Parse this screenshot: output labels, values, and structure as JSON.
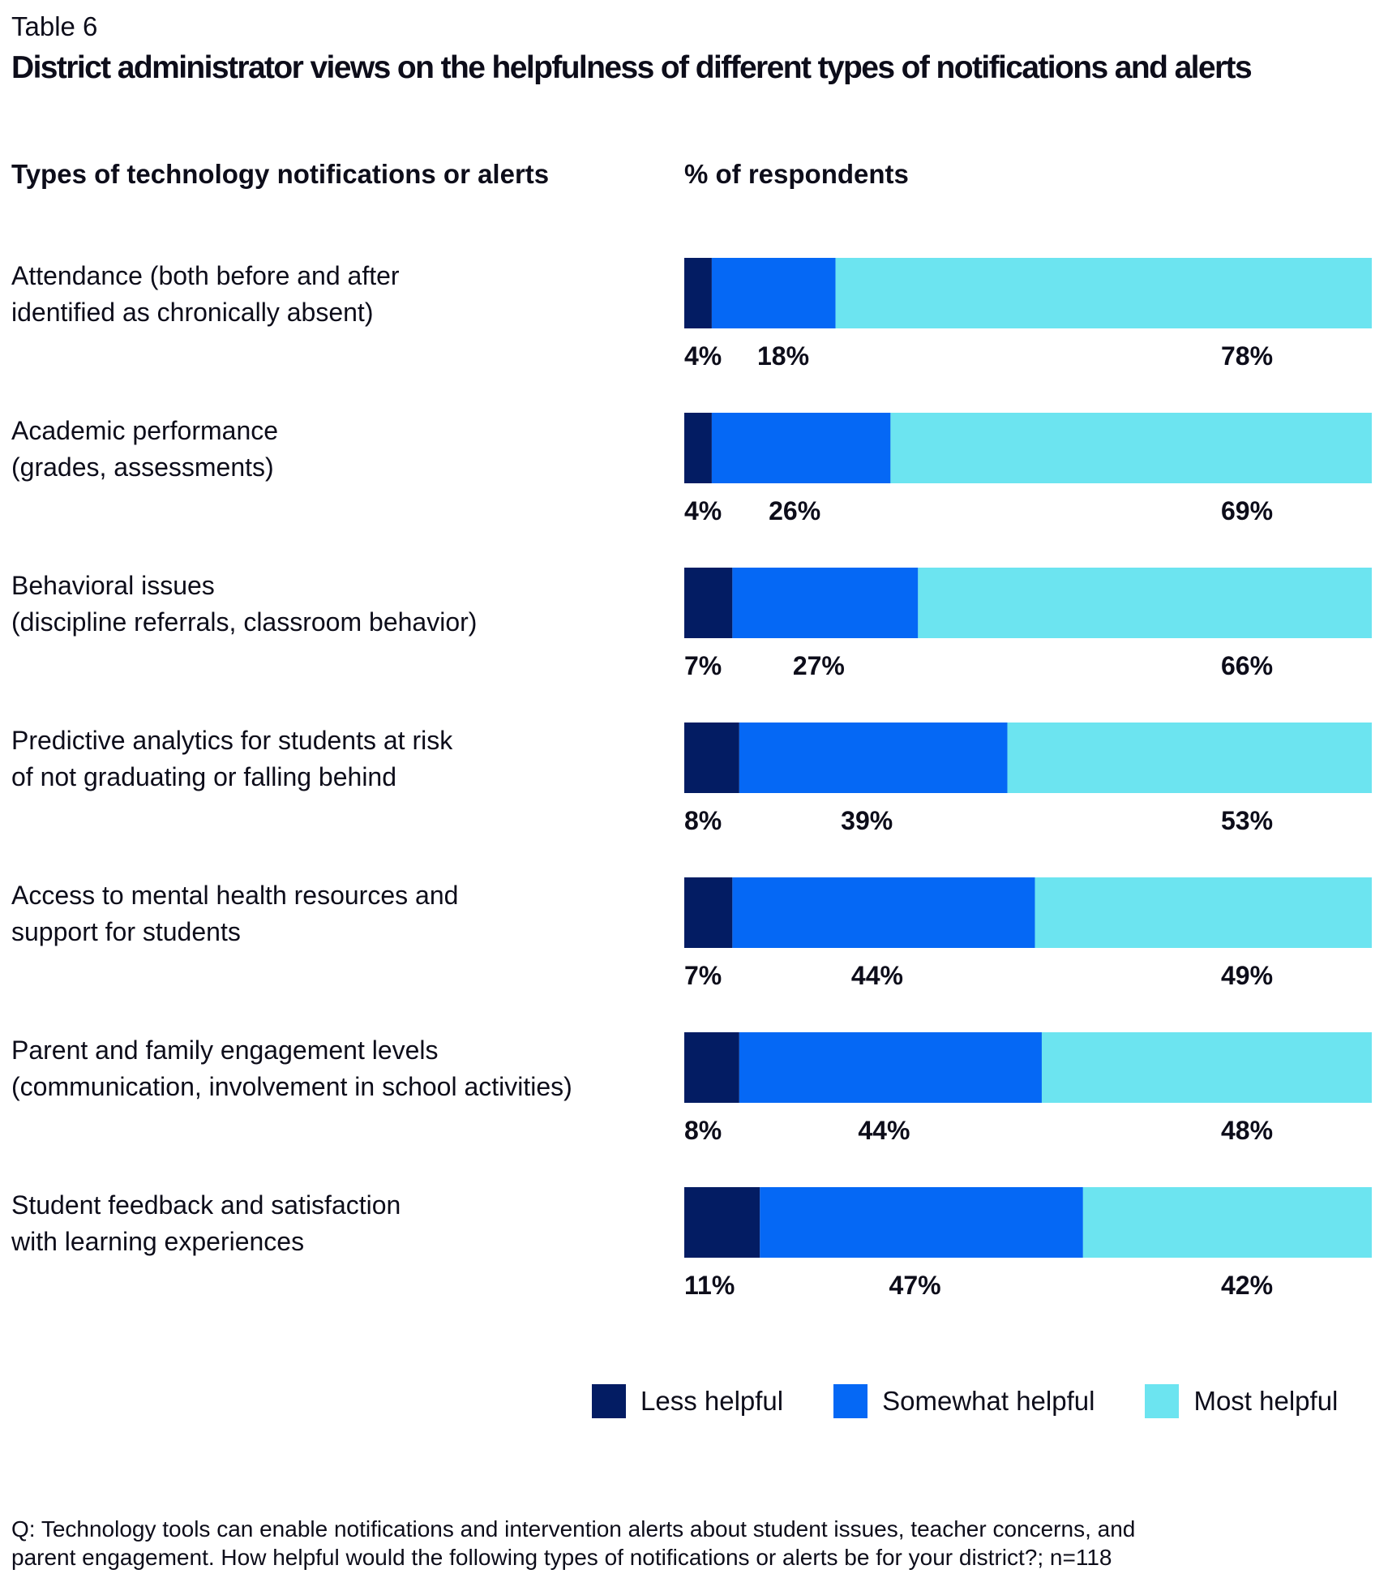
{
  "header": {
    "table_label": "Table 6",
    "title": "District administrator views on the helpfulness of different types of notifications and alerts",
    "col_types": "Types of technology notifications or alerts",
    "col_percent": "% of respondents"
  },
  "colors": {
    "less": "#031c63",
    "somewhat": "#0568f5",
    "most": "#6ce4f0"
  },
  "chart_data": {
    "type": "bar",
    "orientation": "horizontal",
    "stacked": true,
    "unit": "%",
    "xlim": [
      0,
      100
    ],
    "categories": [
      "Attendance (both before and after\nidentified as chronically absent)",
      "Academic performance\n(grades, assessments)",
      "Behavioral issues\n(discipline referrals, classroom behavior)",
      "Predictive analytics for students at risk\nof not graduating or falling behind",
      "Access to mental health resources and\nsupport for students",
      "Parent and family engagement levels\n(communication, involvement in school activities)",
      "Student feedback and satisfaction\nwith learning experiences"
    ],
    "series": [
      {
        "name": "Less helpful",
        "values": [
          4,
          4,
          7,
          8,
          7,
          8,
          11
        ]
      },
      {
        "name": "Somewhat helpful",
        "values": [
          18,
          26,
          27,
          39,
          44,
          44,
          47
        ]
      },
      {
        "name": "Most helpful",
        "values": [
          78,
          69,
          66,
          53,
          49,
          48,
          42
        ]
      }
    ],
    "legend": [
      "Less helpful",
      "Somewhat helpful",
      "Most helpful"
    ],
    "legend_position": "bottom-right"
  },
  "footnote": "Q: Technology tools can enable notifications and intervention alerts about student issues, teacher concerns, and\nparent engagement. How helpful would the following types of notifications or alerts be for your district?; n=118"
}
